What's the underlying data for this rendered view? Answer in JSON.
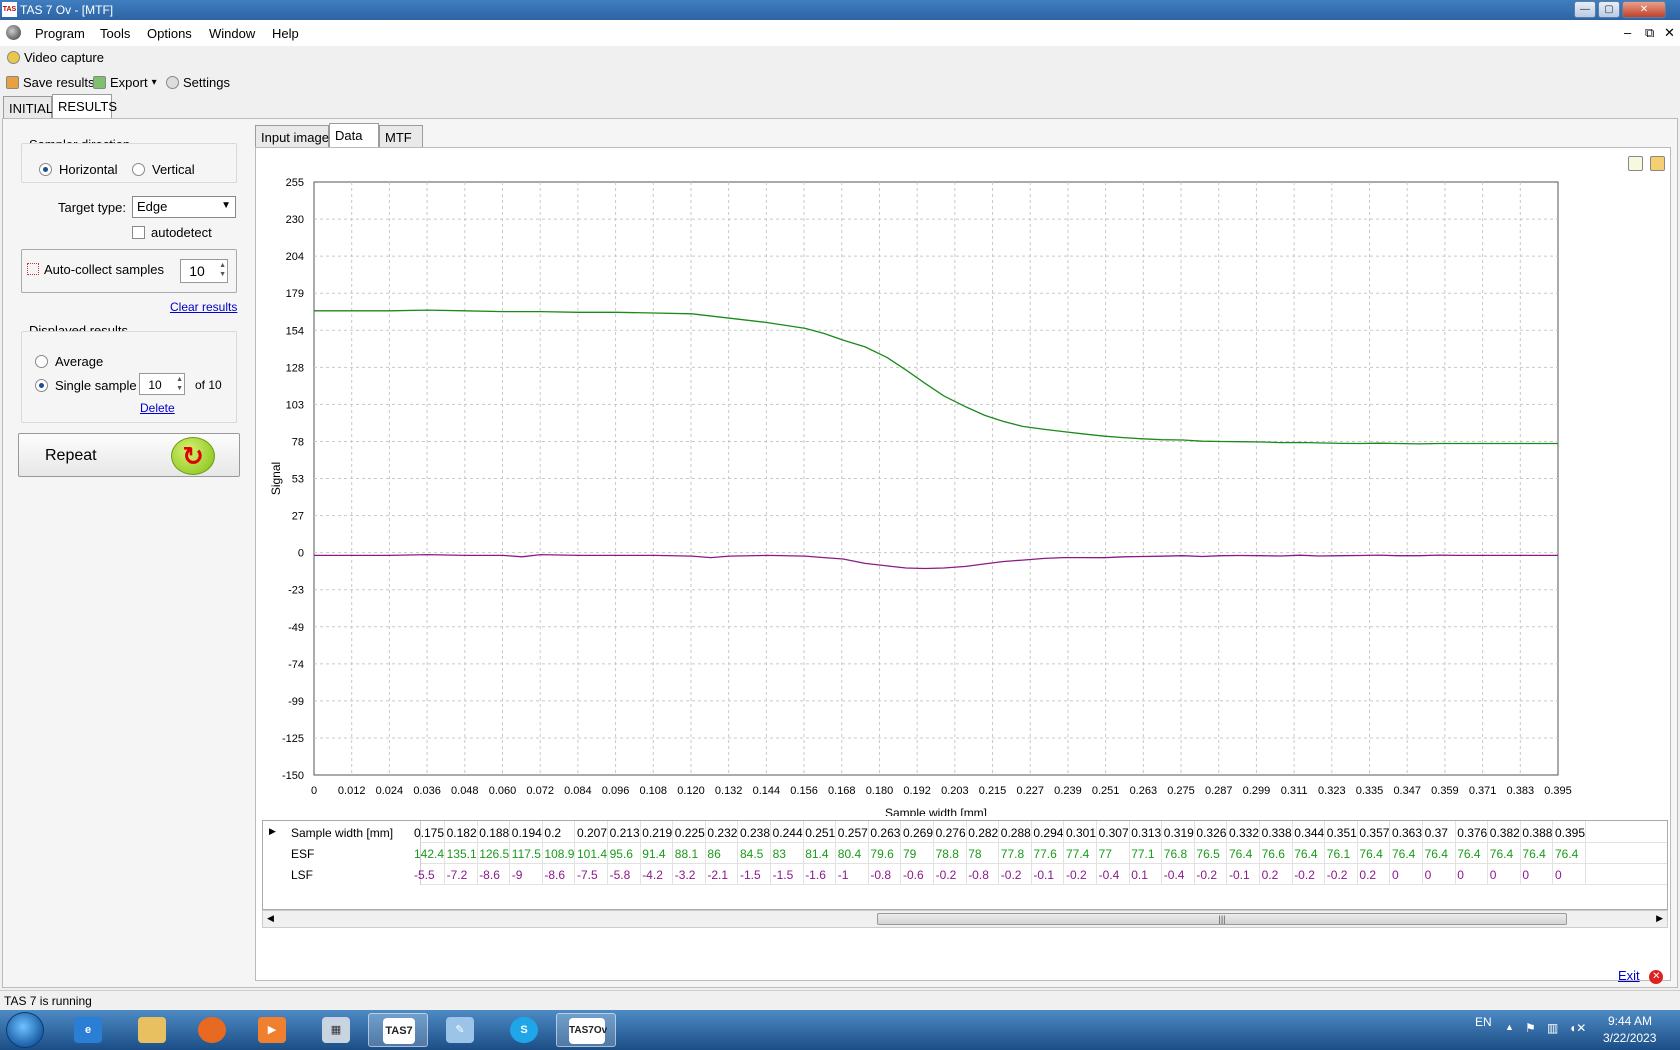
{
  "window": {
    "title": "TAS 7 Ov - [MTF]",
    "app_icon": "TAS"
  },
  "menu": {
    "items": [
      "Program",
      "Tools",
      "Options",
      "Window",
      "Help"
    ],
    "mdi_minimize": "–",
    "mdi_restore": "⧉",
    "mdi_close": "✕"
  },
  "video_capture": "Video capture",
  "toolbar": {
    "save_results": "Save results",
    "export": "Export",
    "export_arrow": "▾",
    "settings": "Settings"
  },
  "top_tabs": [
    "INITIAL",
    "RESULTS"
  ],
  "left_panel": {
    "sampler_direction": "Sampler direction",
    "horizontal": "Horizontal",
    "vertical": "Vertical",
    "target_type_label": "Target type:",
    "target_type_value": "Edge",
    "autodetect": "autodetect",
    "auto_collect_label": "Auto-collect samples",
    "auto_collect_value": "10",
    "clear_results": "Clear results",
    "displayed_results": "Displayed results",
    "average": "Average",
    "single_sample": "Single sample",
    "single_sample_value": "10",
    "of_total": "of 10",
    "delete": "Delete",
    "repeat": "Repeat"
  },
  "result_tabs": [
    "Input image",
    "Data",
    "MTF"
  ],
  "chart_data": {
    "type": "line",
    "xlabel": "Sample width [mm]",
    "ylabel": "Signal",
    "xlim": [
      0,
      0.395
    ],
    "ylim": [
      -150,
      255
    ],
    "x_ticks": [
      "0",
      "0.012",
      "0.024",
      "0.036",
      "0.048",
      "0.060",
      "0.072",
      "0.084",
      "0.096",
      "0.108",
      "0.120",
      "0.132",
      "0.144",
      "0.156",
      "0.168",
      "0.180",
      "0.192",
      "0.203",
      "0.215",
      "0.227",
      "0.239",
      "0.251",
      "0.263",
      "0.275",
      "0.287",
      "0.299",
      "0.311",
      "0.323",
      "0.335",
      "0.347",
      "0.359",
      "0.371",
      "0.383",
      "0.395"
    ],
    "y_ticks": [
      "255",
      "230",
      "204",
      "179",
      "154",
      "128",
      "103",
      "78",
      "53",
      "27",
      "0",
      "-23",
      "-49",
      "-74",
      "-99",
      "-125",
      "-150"
    ],
    "grid": true,
    "series": [
      {
        "name": "ESF",
        "color": "#1a8a1a",
        "x": [
          0,
          0.012,
          0.024,
          0.036,
          0.048,
          0.06,
          0.072,
          0.084,
          0.096,
          0.108,
          0.12,
          0.132,
          0.144,
          0.156,
          0.162,
          0.168,
          0.175,
          0.182,
          0.188,
          0.194,
          0.2,
          0.207,
          0.213,
          0.219,
          0.225,
          0.232,
          0.238,
          0.244,
          0.251,
          0.257,
          0.263,
          0.269,
          0.276,
          0.282,
          0.288,
          0.294,
          0.301,
          0.307,
          0.313,
          0.319,
          0.326,
          0.332,
          0.338,
          0.344,
          0.351,
          0.357,
          0.363,
          0.37,
          0.376,
          0.382,
          0.388,
          0.395
        ],
        "values": [
          167,
          167,
          167,
          167.5,
          167,
          166.5,
          166.5,
          166,
          166,
          165.5,
          165,
          162,
          159,
          155,
          151.5,
          147,
          142.4,
          135.1,
          126.5,
          117.5,
          108.9,
          101.4,
          95.6,
          91.4,
          88.1,
          86,
          84.5,
          83,
          81.4,
          80.4,
          79.6,
          79,
          78.8,
          78,
          77.8,
          77.6,
          77.4,
          77,
          77.1,
          76.8,
          76.5,
          76.4,
          76.6,
          76.4,
          76.1,
          76.4,
          76.4,
          76.4,
          76.4,
          76.4,
          76.4,
          76.4
        ]
      },
      {
        "name": "LSF",
        "color": "#8a1a8a",
        "x": [
          0,
          0.012,
          0.024,
          0.036,
          0.048,
          0.06,
          0.066,
          0.072,
          0.084,
          0.096,
          0.108,
          0.12,
          0.126,
          0.132,
          0.144,
          0.156,
          0.162,
          0.168,
          0.175,
          0.182,
          0.188,
          0.194,
          0.2,
          0.207,
          0.213,
          0.219,
          0.225,
          0.232,
          0.238,
          0.244,
          0.251,
          0.257,
          0.263,
          0.269,
          0.276,
          0.282,
          0.288,
          0.294,
          0.301,
          0.307,
          0.313,
          0.319,
          0.326,
          0.332,
          0.338,
          0.344,
          0.351,
          0.357,
          0.363,
          0.37,
          0.376,
          0.382,
          0.388,
          0.395
        ],
        "values": [
          0,
          0,
          0,
          0.5,
          0,
          0,
          -1,
          0.5,
          0,
          0,
          0,
          -0.5,
          -1.5,
          -0.5,
          0,
          -0.5,
          -1.5,
          -2.5,
          -5.5,
          -7.2,
          -8.6,
          -9,
          -8.6,
          -7.5,
          -5.8,
          -4.2,
          -3.2,
          -2.1,
          -1.5,
          -1.5,
          -1.6,
          -1,
          -0.8,
          -0.6,
          -0.2,
          -0.8,
          -0.2,
          -0.1,
          -0.2,
          -0.4,
          0.1,
          -0.4,
          -0.2,
          -0.1,
          0.2,
          -0.2,
          -0.2,
          0.2,
          0,
          0,
          0,
          0,
          0,
          0
        ]
      }
    ]
  },
  "data_grid": {
    "headers": [
      "Sample width [mm]",
      "ESF",
      "LSF"
    ],
    "row_marker": "▶",
    "columns": [
      "0.175",
      "0.182",
      "0.188",
      "0.194",
      "0.2",
      "0.207",
      "0.213",
      "0.219",
      "0.225",
      "0.232",
      "0.238",
      "0.244",
      "0.251",
      "0.257",
      "0.263",
      "0.269",
      "0.276",
      "0.282",
      "0.288",
      "0.294",
      "0.301",
      "0.307",
      "0.313",
      "0.319",
      "0.326",
      "0.332",
      "0.338",
      "0.344",
      "0.351",
      "0.357",
      "0.363",
      "0.37",
      "0.376",
      "0.382",
      "0.388",
      "0.395"
    ],
    "esf": [
      "142.4",
      "135.1",
      "126.5",
      "117.5",
      "108.9",
      "101.4",
      "95.6",
      "91.4",
      "88.1",
      "86",
      "84.5",
      "83",
      "81.4",
      "80.4",
      "79.6",
      "79",
      "78.8",
      "78",
      "77.8",
      "77.6",
      "77.4",
      "77",
      "77.1",
      "76.8",
      "76.5",
      "76.4",
      "76.6",
      "76.4",
      "76.1",
      "76.4",
      "76.4",
      "76.4",
      "76.4",
      "76.4",
      "76.4",
      "76.4"
    ],
    "lsf": [
      "-5.5",
      "-7.2",
      "-8.6",
      "-9",
      "-8.6",
      "-7.5",
      "-5.8",
      "-4.2",
      "-3.2",
      "-2.1",
      "-1.5",
      "-1.5",
      "-1.6",
      "-1",
      "-0.8",
      "-0.6",
      "-0.2",
      "-0.8",
      "-0.2",
      "-0.1",
      "-0.2",
      "-0.4",
      "0.1",
      "-0.4",
      "-0.2",
      "-0.1",
      "0.2",
      "-0.2",
      "-0.2",
      "0.2",
      "0",
      "0",
      "0",
      "0",
      "0",
      "0"
    ],
    "scroll_left": "◀",
    "scroll_right": "▶",
    "scroll_thumb": "|||"
  },
  "exit": "Exit",
  "status": "TAS 7 is running",
  "taskbar": {
    "apps": [
      "ie-icon",
      "explorer-icon",
      "firefox-icon",
      "media-icon",
      "calculator-icon",
      "tas-icon",
      "paint-icon",
      "skype-icon",
      "tas-ov-icon"
    ],
    "tas_label": "TAS7",
    "tas_ov_label": "TAS7Ov",
    "lang": "EN",
    "time": "9:44 AM",
    "date": "3/22/2023"
  },
  "colors": {
    "esf": "#1a8a1a",
    "lsf": "#8a1a8a",
    "titlebar": "#2d64a4",
    "taskbar": "#1c4e86",
    "link": "#0000cc"
  }
}
